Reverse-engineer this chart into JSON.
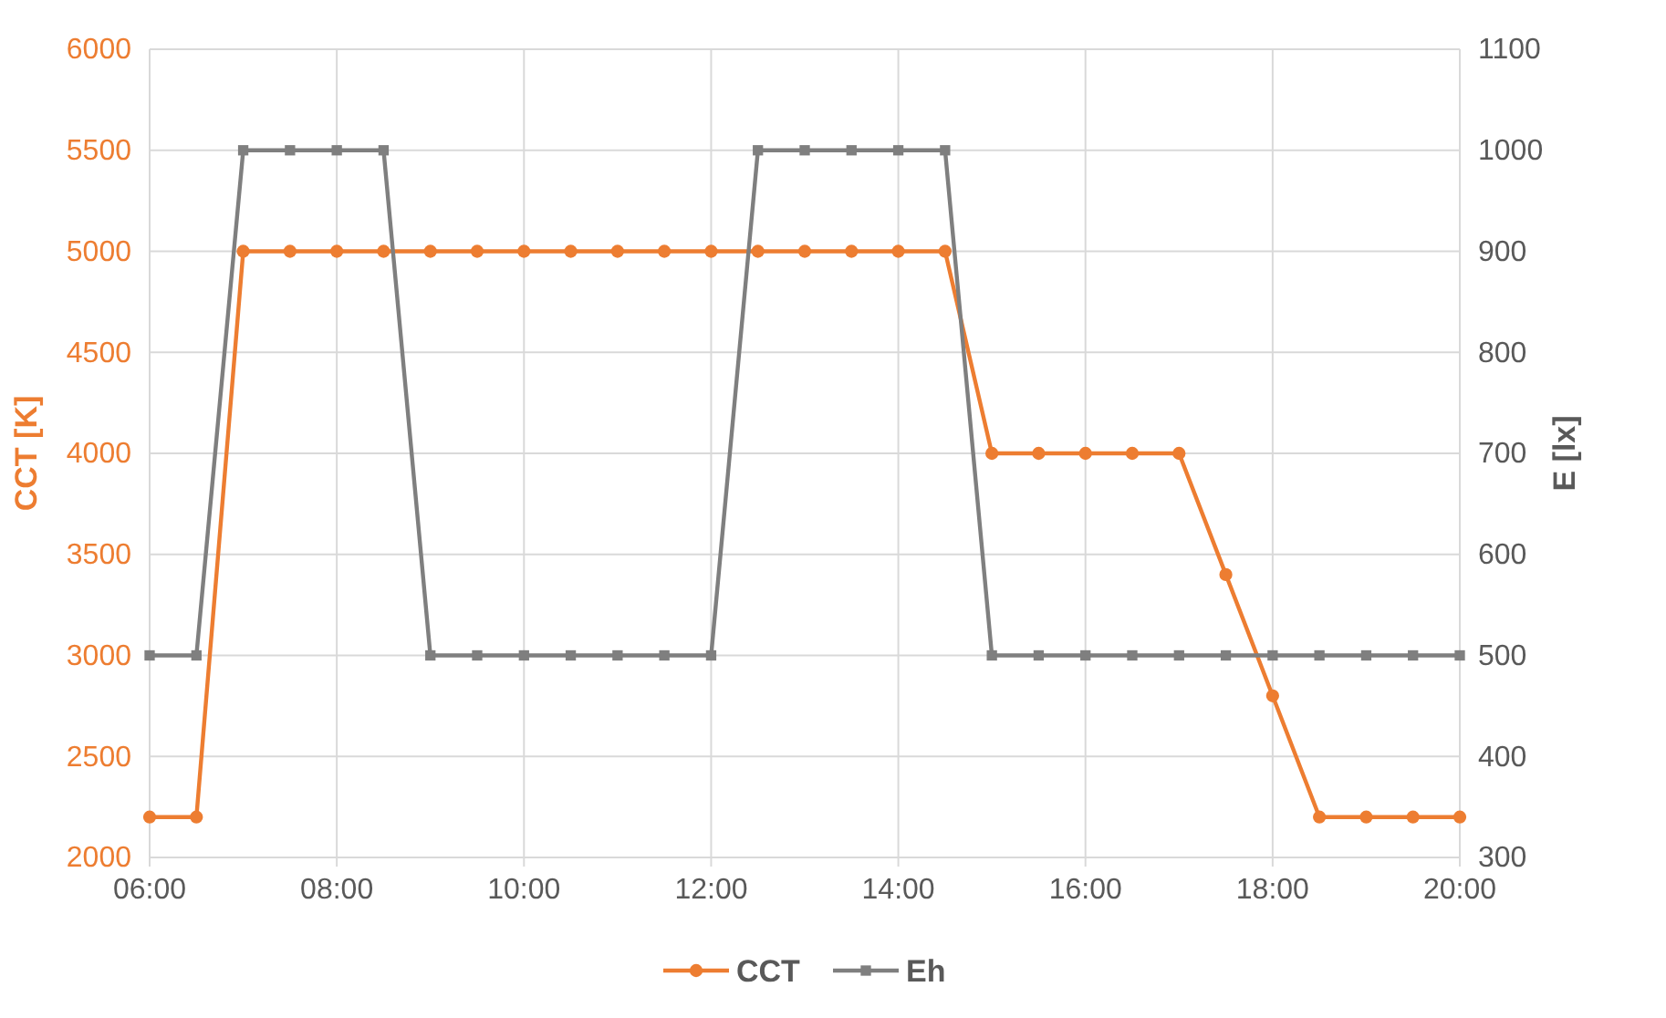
{
  "chart_data": {
    "type": "line",
    "ylabel": "CCT [K]",
    "y2label": "E [lx]",
    "x": [
      6,
      6.5,
      7,
      7.5,
      8,
      8.5,
      9,
      9.5,
      10,
      10.5,
      11,
      11.5,
      12,
      12.5,
      13,
      13.5,
      14,
      14.5,
      15,
      15.5,
      16,
      16.5,
      17,
      17.5,
      18,
      18.5,
      19,
      19.5,
      20
    ],
    "xlim": [
      6,
      20
    ],
    "xticks": [
      {
        "value": 6,
        "label": "06:00"
      },
      {
        "value": 8,
        "label": "08:00"
      },
      {
        "value": 10,
        "label": "10:00"
      },
      {
        "value": 12,
        "label": "12:00"
      },
      {
        "value": 14,
        "label": "14:00"
      },
      {
        "value": 16,
        "label": "16:00"
      },
      {
        "value": 18,
        "label": "18:00"
      },
      {
        "value": 20,
        "label": "20:00"
      }
    ],
    "ylim": [
      2000,
      6000
    ],
    "yticks": [
      2000,
      2500,
      3000,
      3500,
      4000,
      4500,
      5000,
      5500,
      6000
    ],
    "y2lim": [
      300,
      1100
    ],
    "y2ticks": [
      300,
      400,
      500,
      600,
      700,
      800,
      900,
      1000,
      1100
    ],
    "grid": true,
    "legend": "bottom",
    "series": [
      {
        "name": "CCT",
        "color": "#ed7d31",
        "marker": "circle",
        "values": [
          2200,
          2200,
          5000,
          5000,
          5000,
          5000,
          5000,
          5000,
          5000,
          5000,
          5000,
          5000,
          5000,
          5000,
          5000,
          5000,
          5000,
          5000,
          4000,
          4000,
          4000,
          4000,
          4000,
          3400,
          2800,
          2200,
          2200,
          2200,
          2200
        ]
      },
      {
        "name": "Eh",
        "color": "#7f7f7f",
        "marker": "square",
        "axis": "y2",
        "values": [
          500,
          500,
          1000,
          1000,
          1000,
          1000,
          500,
          500,
          500,
          500,
          500,
          500,
          500,
          1000,
          1000,
          1000,
          1000,
          1000,
          500,
          500,
          500,
          500,
          500,
          500,
          500,
          500,
          500,
          500,
          500
        ]
      }
    ]
  }
}
